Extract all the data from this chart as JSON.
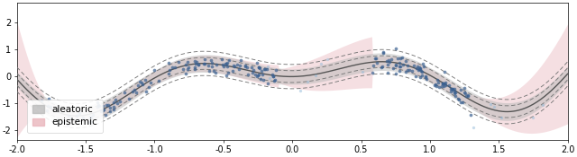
{
  "x_min": -2.0,
  "x_max": 2.0,
  "y_min": -2.35,
  "y_max": 2.75,
  "yticks": [
    -2,
    -1,
    0,
    1,
    2
  ],
  "xticks": [
    -2.0,
    -1.5,
    -1.0,
    -0.5,
    0.0,
    0.5,
    1.0,
    1.5,
    2.0
  ],
  "aleatoric_color": "#b8b8b8",
  "aleatoric_alpha": 0.5,
  "epistemic_color": "#e8b0b8",
  "epistemic_alpha": 0.4,
  "mean_line_color": "#555555",
  "dashed_line_color": "#777777",
  "scatter_color_dark": "#3a6090",
  "scatter_color_light": "#90b8d8",
  "scatter_alpha": 0.7,
  "scatter_size": 7,
  "legend_fontsize": 7.5,
  "tick_fontsize": 7,
  "figsize": [
    6.4,
    1.75
  ],
  "dpi": 100
}
